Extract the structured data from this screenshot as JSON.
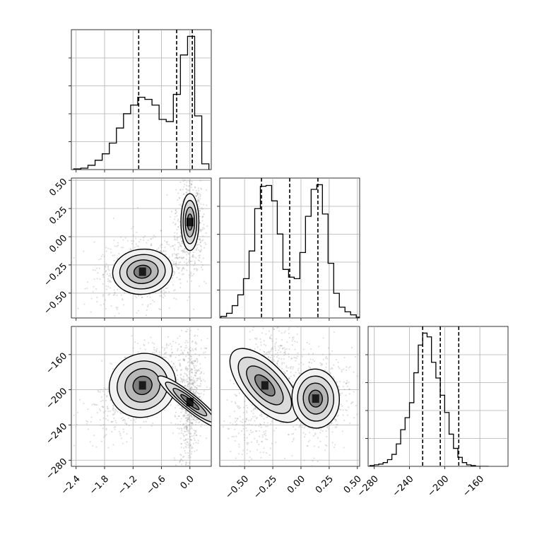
{
  "chart_data": {
    "type": "corner",
    "grid": true,
    "quantile_lines": "dashed",
    "parameters": [
      {
        "ticks": [
          -2.4,
          -1.8,
          -1.2,
          -0.6,
          0.0
        ],
        "tick_labels": [
          "−2.4",
          "−1.8",
          "−1.2",
          "−0.6",
          "0.0"
        ],
        "range": [
          -2.5,
          0.45
        ]
      },
      {
        "ticks": [
          -0.5,
          -0.25,
          0.0,
          0.25,
          0.5
        ],
        "tick_labels": [
          "−0.50",
          "−0.25",
          "0.00",
          "0.25",
          "0.50"
        ],
        "range": [
          -0.72,
          0.52
        ]
      },
      {
        "ticks": [
          -280,
          -240,
          -200,
          -160
        ],
        "tick_labels": [
          "−280",
          "−240",
          "−200",
          "−160"
        ],
        "range": [
          -287,
          -128
        ]
      }
    ],
    "marginals": [
      {
        "bins": [
          -2.45,
          -2.3,
          -2.15,
          -2.0,
          -1.85,
          -1.7,
          -1.55,
          -1.4,
          -1.25,
          -1.1,
          -0.95,
          -0.8,
          -0.65,
          -0.5,
          -0.35,
          -0.2,
          -0.05,
          0.1,
          0.25,
          0.4
        ],
        "counts": [
          0.005,
          0.01,
          0.03,
          0.065,
          0.11,
          0.185,
          0.29,
          0.39,
          0.45,
          0.505,
          0.49,
          0.45,
          0.35,
          0.335,
          0.525,
          0.8,
          0.93,
          0.375,
          0.04
        ],
        "quantiles": [
          -1.08,
          -0.28,
          0.05
        ]
      },
      {
        "bins": [
          -0.71,
          -0.66,
          -0.61,
          -0.56,
          -0.51,
          -0.46,
          -0.41,
          -0.36,
          -0.31,
          -0.26,
          -0.21,
          -0.16,
          -0.11,
          -0.06,
          -0.01,
          0.04,
          0.09,
          0.14,
          0.19,
          0.24,
          0.29,
          0.34,
          0.39,
          0.44,
          0.49,
          0.52
        ],
        "counts": [
          0.01,
          0.03,
          0.08,
          0.15,
          0.255,
          0.435,
          0.71,
          0.855,
          0.86,
          0.76,
          0.545,
          0.315,
          0.265,
          0.255,
          0.425,
          0.66,
          0.835,
          0.865,
          0.675,
          0.355,
          0.16,
          0.07,
          0.04,
          0.02,
          0.005
        ],
        "quantiles": [
          -0.35,
          -0.1,
          0.15
        ]
      },
      {
        "bins": [
          -285,
          -280,
          -275,
          -270,
          -265,
          -260,
          -255,
          -250,
          -245,
          -240,
          -235,
          -230,
          -225,
          -220,
          -215,
          -210,
          -205,
          -200,
          -195,
          -190,
          -185,
          -180,
          -175,
          -170,
          -165,
          -160,
          -155,
          -150
        ],
        "counts": [
          0.005,
          0.01,
          0.015,
          0.025,
          0.045,
          0.08,
          0.15,
          0.245,
          0.325,
          0.425,
          0.625,
          0.81,
          0.89,
          0.865,
          0.695,
          0.59,
          0.475,
          0.36,
          0.215,
          0.12,
          0.06,
          0.025,
          0.01,
          0.005,
          0.0,
          0.0,
          0.0
        ],
        "quantiles": [
          -225,
          -205,
          -184
        ]
      }
    ],
    "joint": {
      "x1_x0": {
        "modes": [
          {
            "center": [
              -1.0,
              -0.31
            ],
            "sigma": [
              0.3,
              0.095
            ],
            "corr": 0.15,
            "weight": 0.55
          },
          {
            "center": [
              0.0,
              0.13
            ],
            "sigma": [
              0.09,
              0.12
            ],
            "corr": 0.0,
            "weight": 0.45
          }
        ]
      },
      "x2_x0": {
        "modes": [
          {
            "center": [
              -1.0,
              -195
            ],
            "sigma": [
              0.34,
              17
            ],
            "corr": 0.7,
            "weight": 0.55
          },
          {
            "center": [
              0.0,
              -214
            ],
            "sigma": [
              0.08,
              22
            ],
            "corr": 0.3,
            "weight": 0.45
          }
        ]
      },
      "x2_x1": {
        "modes": [
          {
            "center": [
              -0.32,
              -195
            ],
            "sigma": [
              0.09,
              25
            ],
            "corr": 0.5,
            "weight": 0.5
          },
          {
            "center": [
              0.13,
              -210
            ],
            "sigma": [
              0.1,
              16
            ],
            "corr": 0.05,
            "weight": 0.5
          }
        ]
      }
    }
  }
}
